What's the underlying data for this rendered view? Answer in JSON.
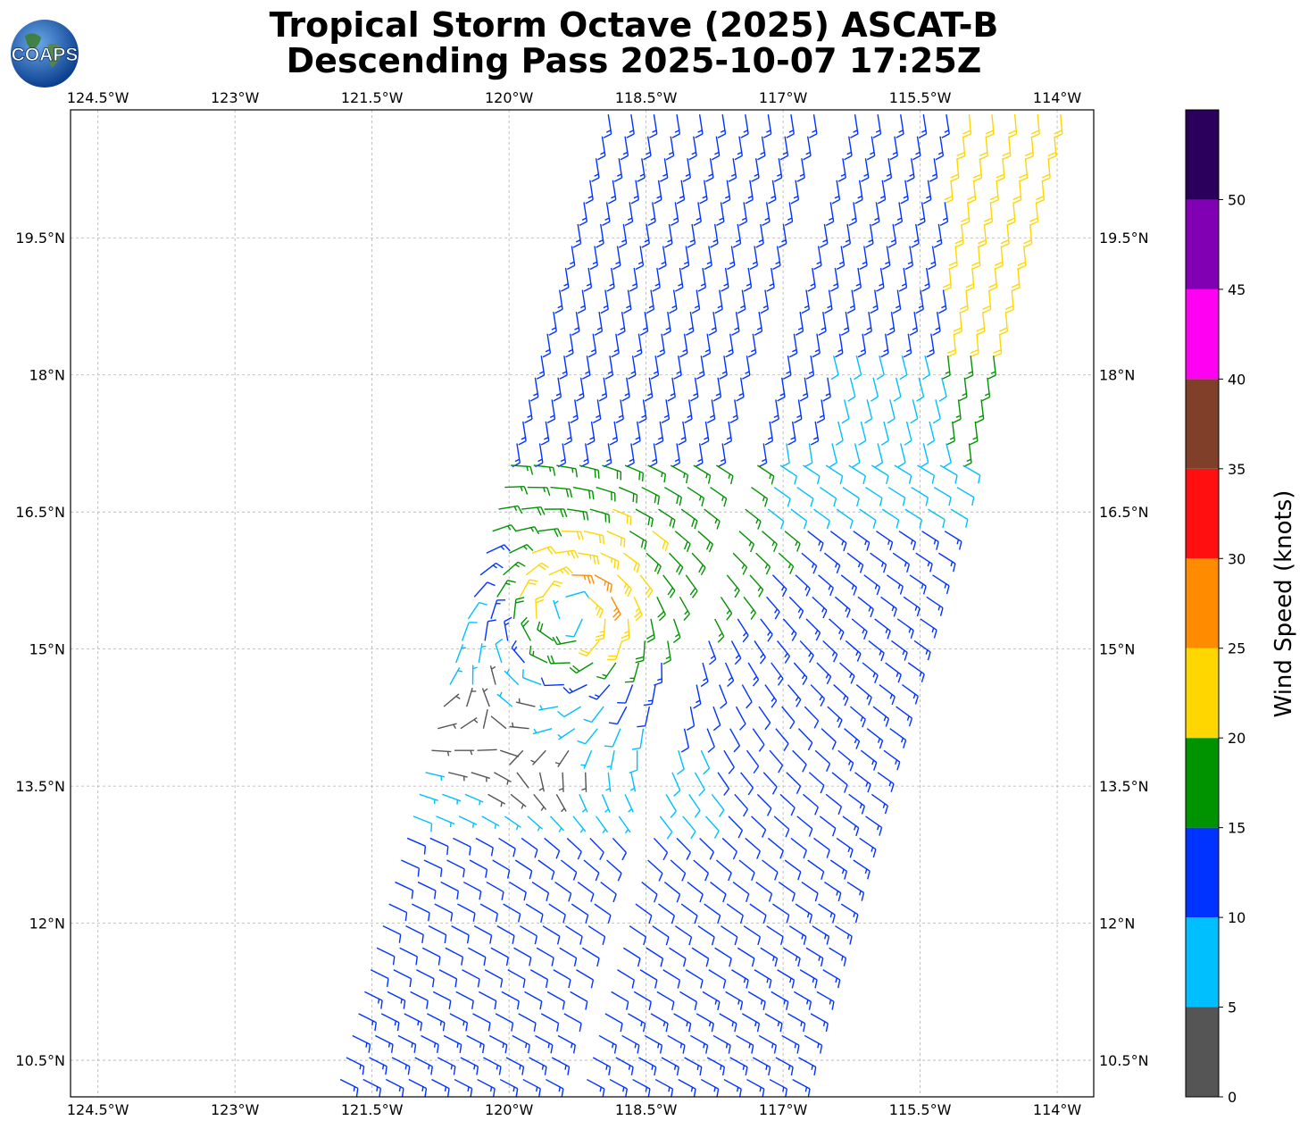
{
  "title": {
    "line1": "Tropical Storm Octave (2025) ASCAT-B",
    "line2": "Descending Pass 2025-10-07 17:25Z"
  },
  "logo": {
    "text": "COAPS",
    "icon": "globe-icon"
  },
  "map": {
    "lon_range": [
      -124.8,
      -113.6
    ],
    "lat_range": [
      10.1,
      20.9
    ],
    "lon_ticks": [
      {
        "value": -124.5,
        "label": "124.5°W"
      },
      {
        "value": -123.0,
        "label": "123°W"
      },
      {
        "value": -121.5,
        "label": "121.5°W"
      },
      {
        "value": -120.0,
        "label": "120°W"
      },
      {
        "value": -118.5,
        "label": "118.5°W"
      },
      {
        "value": -117.0,
        "label": "117°W"
      },
      {
        "value": -115.5,
        "label": "115.5°W"
      },
      {
        "value": -114.0,
        "label": "114°W"
      }
    ],
    "lat_ticks": [
      {
        "value": 10.5,
        "label": "10.5°N"
      },
      {
        "value": 12.0,
        "label": "12°N"
      },
      {
        "value": 13.5,
        "label": "13.5°N"
      },
      {
        "value": 15.0,
        "label": "15°N"
      },
      {
        "value": 16.5,
        "label": "16.5°N"
      },
      {
        "value": 18.0,
        "label": "18°N"
      },
      {
        "value": 19.5,
        "label": "19.5°N"
      }
    ],
    "grid": true,
    "storm_center": {
      "lon": -119.3,
      "lat": 15.4
    }
  },
  "colorbar": {
    "label": "Wind Speed (knots)",
    "bins": [
      {
        "min": 0,
        "max": 5,
        "color": "#555555"
      },
      {
        "min": 5,
        "max": 10,
        "color": "#00bfff"
      },
      {
        "min": 10,
        "max": 15,
        "color": "#0033ff"
      },
      {
        "min": 15,
        "max": 20,
        "color": "#009300"
      },
      {
        "min": 20,
        "max": 25,
        "color": "#ffd700"
      },
      {
        "min": 25,
        "max": 30,
        "color": "#ff8c00"
      },
      {
        "min": 30,
        "max": 35,
        "color": "#ff0f0f"
      },
      {
        "min": 35,
        "max": 40,
        "color": "#803f29"
      },
      {
        "min": 40,
        "max": 45,
        "color": "#ff00f2"
      },
      {
        "min": 45,
        "max": 50,
        "color": "#8200b3"
      },
      {
        "min": 50,
        "max": 55,
        "color": "#2b005c"
      }
    ],
    "tick_labels": [
      "0",
      "5",
      "10",
      "15",
      "20",
      "25",
      "30",
      "35",
      "40",
      "45",
      "50"
    ]
  }
}
